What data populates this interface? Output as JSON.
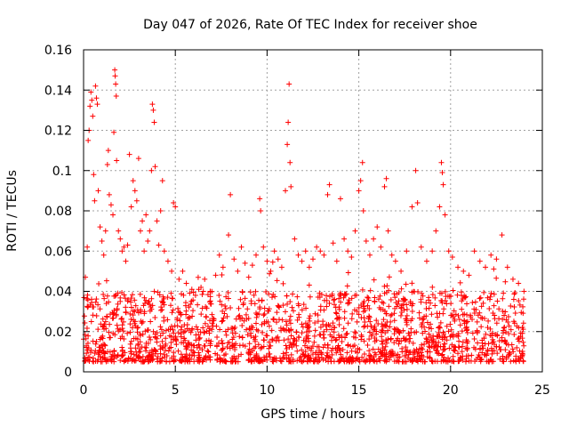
{
  "chart_data": {
    "type": "scatter",
    "title": "Day 047 of 2026, Rate Of TEC Index for receiver shoe",
    "xlabel": "GPS time / hours",
    "ylabel": "ROTI / TECUs",
    "xlim": [
      0,
      25
    ],
    "ylim": [
      0,
      0.16
    ],
    "x_ticks": [
      "0",
      "5",
      "10",
      "15",
      "20",
      "25"
    ],
    "y_ticks": [
      "0",
      "0.02",
      "0.04",
      "0.06",
      "0.08",
      "0.1",
      "0.12",
      "0.14",
      "0.16"
    ],
    "x_tick_values": [
      0,
      5,
      10,
      15,
      20,
      25
    ],
    "y_tick_values": [
      0,
      0.02,
      0.04,
      0.06,
      0.08,
      0.1,
      0.12,
      0.14,
      0.16
    ],
    "grid": true,
    "marker": "+",
    "marker_color": "#ff0000",
    "x_data_range": [
      0,
      24
    ],
    "series": [
      {
        "name": "",
        "points": [
          [
            0.1,
            0.047
          ],
          [
            0.2,
            0.062
          ],
          [
            0.25,
            0.115
          ],
          [
            0.3,
            0.12
          ],
          [
            0.35,
            0.132
          ],
          [
            0.4,
            0.139
          ],
          [
            0.45,
            0.135
          ],
          [
            0.5,
            0.127
          ],
          [
            0.55,
            0.098
          ],
          [
            0.6,
            0.085
          ],
          [
            0.65,
            0.142
          ],
          [
            0.7,
            0.136
          ],
          [
            0.75,
            0.133
          ],
          [
            0.8,
            0.09
          ],
          [
            0.9,
            0.072
          ],
          [
            1.0,
            0.065
          ],
          [
            1.1,
            0.058
          ],
          [
            1.2,
            0.07
          ],
          [
            1.3,
            0.103
          ],
          [
            1.35,
            0.11
          ],
          [
            1.4,
            0.088
          ],
          [
            1.5,
            0.083
          ],
          [
            1.6,
            0.078
          ],
          [
            1.65,
            0.119
          ],
          [
            1.7,
            0.15
          ],
          [
            1.72,
            0.147
          ],
          [
            1.75,
            0.143
          ],
          [
            1.78,
            0.137
          ],
          [
            1.8,
            0.105
          ],
          [
            1.9,
            0.07
          ],
          [
            2.0,
            0.066
          ],
          [
            2.1,
            0.06
          ],
          [
            2.2,
            0.062
          ],
          [
            2.3,
            0.055
          ],
          [
            2.4,
            0.063
          ],
          [
            2.5,
            0.108
          ],
          [
            2.6,
            0.082
          ],
          [
            2.7,
            0.095
          ],
          [
            2.8,
            0.09
          ],
          [
            2.9,
            0.085
          ],
          [
            3.0,
            0.106
          ],
          [
            3.1,
            0.07
          ],
          [
            3.2,
            0.075
          ],
          [
            3.3,
            0.06
          ],
          [
            3.4,
            0.078
          ],
          [
            3.5,
            0.065
          ],
          [
            3.6,
            0.07
          ],
          [
            3.7,
            0.1
          ],
          [
            3.75,
            0.133
          ],
          [
            3.8,
            0.13
          ],
          [
            3.85,
            0.124
          ],
          [
            3.9,
            0.102
          ],
          [
            4.0,
            0.075
          ],
          [
            4.1,
            0.063
          ],
          [
            4.2,
            0.08
          ],
          [
            4.3,
            0.095
          ],
          [
            4.4,
            0.06
          ],
          [
            4.6,
            0.055
          ],
          [
            4.8,
            0.05
          ],
          [
            4.9,
            0.084
          ],
          [
            5.0,
            0.082
          ],
          [
            5.2,
            0.046
          ],
          [
            5.4,
            0.05
          ],
          [
            5.6,
            0.044
          ],
          [
            5.9,
            0.041
          ],
          [
            6.1,
            0.038
          ],
          [
            6.4,
            0.042
          ],
          [
            6.6,
            0.046
          ],
          [
            6.9,
            0.04
          ],
          [
            7.2,
            0.048
          ],
          [
            7.4,
            0.058
          ],
          [
            7.6,
            0.052
          ],
          [
            7.9,
            0.068
          ],
          [
            8.0,
            0.088
          ],
          [
            8.2,
            0.056
          ],
          [
            8.4,
            0.05
          ],
          [
            8.6,
            0.062
          ],
          [
            8.8,
            0.054
          ],
          [
            9.0,
            0.047
          ],
          [
            9.2,
            0.053
          ],
          [
            9.4,
            0.058
          ],
          [
            9.6,
            0.086
          ],
          [
            9.65,
            0.08
          ],
          [
            9.8,
            0.062
          ],
          [
            10.0,
            0.055
          ],
          [
            10.2,
            0.05
          ],
          [
            10.4,
            0.06
          ],
          [
            10.6,
            0.056
          ],
          [
            10.8,
            0.052
          ],
          [
            11.0,
            0.09
          ],
          [
            11.1,
            0.113
          ],
          [
            11.15,
            0.124
          ],
          [
            11.2,
            0.143
          ],
          [
            11.25,
            0.104
          ],
          [
            11.3,
            0.092
          ],
          [
            11.5,
            0.066
          ],
          [
            11.7,
            0.058
          ],
          [
            11.9,
            0.055
          ],
          [
            12.1,
            0.06
          ],
          [
            12.3,
            0.052
          ],
          [
            12.5,
            0.056
          ],
          [
            12.7,
            0.062
          ],
          [
            12.9,
            0.06
          ],
          [
            13.1,
            0.058
          ],
          [
            13.3,
            0.088
          ],
          [
            13.4,
            0.093
          ],
          [
            13.6,
            0.064
          ],
          [
            13.8,
            0.055
          ],
          [
            14.0,
            0.086
          ],
          [
            14.2,
            0.066
          ],
          [
            14.4,
            0.06
          ],
          [
            14.6,
            0.057
          ],
          [
            14.8,
            0.07
          ],
          [
            15.0,
            0.09
          ],
          [
            15.1,
            0.095
          ],
          [
            15.2,
            0.104
          ],
          [
            15.25,
            0.08
          ],
          [
            15.4,
            0.065
          ],
          [
            15.6,
            0.058
          ],
          [
            15.8,
            0.066
          ],
          [
            16.0,
            0.072
          ],
          [
            16.2,
            0.062
          ],
          [
            16.4,
            0.092
          ],
          [
            16.5,
            0.096
          ],
          [
            16.6,
            0.07
          ],
          [
            16.8,
            0.058
          ],
          [
            17.0,
            0.055
          ],
          [
            17.3,
            0.05
          ],
          [
            17.6,
            0.06
          ],
          [
            17.9,
            0.082
          ],
          [
            18.1,
            0.1
          ],
          [
            18.2,
            0.084
          ],
          [
            18.4,
            0.062
          ],
          [
            18.7,
            0.055
          ],
          [
            19.0,
            0.06
          ],
          [
            19.2,
            0.07
          ],
          [
            19.4,
            0.082
          ],
          [
            19.5,
            0.104
          ],
          [
            19.55,
            0.099
          ],
          [
            19.6,
            0.093
          ],
          [
            19.7,
            0.078
          ],
          [
            19.9,
            0.06
          ],
          [
            20.1,
            0.057
          ],
          [
            20.4,
            0.052
          ],
          [
            20.7,
            0.05
          ],
          [
            21.0,
            0.048
          ],
          [
            21.3,
            0.06
          ],
          [
            21.6,
            0.055
          ],
          [
            21.9,
            0.052
          ],
          [
            22.2,
            0.058
          ],
          [
            22.5,
            0.056
          ],
          [
            22.8,
            0.068
          ],
          [
            23.1,
            0.052
          ],
          [
            23.4,
            0.046
          ],
          [
            23.7,
            0.044
          ],
          [
            24.0,
            0.04
          ]
        ],
        "band": {
          "description_points": "dense background cloud",
          "x_start": 0,
          "x_end": 24,
          "typical_range": [
            0.005,
            0.04
          ],
          "median": 0.017
        }
      }
    ]
  }
}
